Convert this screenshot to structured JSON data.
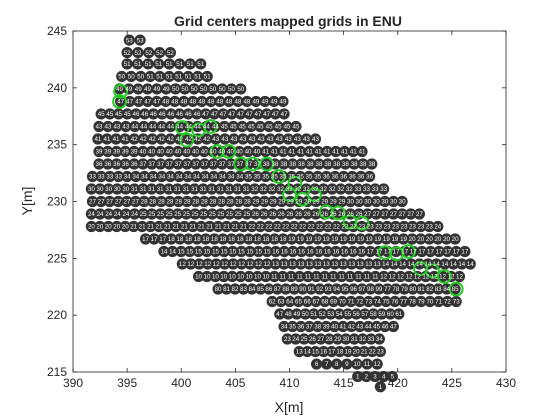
{
  "chart_data": {
    "type": "scatter",
    "title": "Grid centers mapped grids in ENU",
    "xlabel": "X[m]",
    "ylabel": "Y[m]",
    "xlim": [
      390,
      430
    ],
    "ylim": [
      215,
      245
    ],
    "xticks": [
      390,
      395,
      400,
      405,
      410,
      415,
      420,
      425,
      430
    ],
    "yticks": [
      215,
      220,
      225,
      230,
      235,
      240,
      245
    ],
    "grid": false,
    "box": true,
    "colors": {
      "marker": "#333333",
      "marker_label": "#ffffff",
      "highlight": "#22cc22",
      "axis": "#262626"
    },
    "point_labels": [
      {
        "y": 244.2,
        "x0": 395.2,
        "x1": 396.2,
        "labels": [
          "53",
          "53"
        ]
      },
      {
        "y": 243.1,
        "x0": 395.0,
        "x1": 399.0,
        "labels": [
          "52",
          "52",
          "52",
          "52",
          "52"
        ]
      },
      {
        "y": 242.1,
        "x0": 395.0,
        "x1": 401.8,
        "labels": [
          "51",
          "51",
          "51",
          "51",
          "51",
          "51",
          "51",
          "51"
        ]
      },
      {
        "y": 241.0,
        "x0": 394.5,
        "x1": 402.4,
        "labels": [
          "50",
          "50",
          "50",
          "51",
          "51",
          "51",
          "51",
          "51",
          "51",
          "51"
        ]
      },
      {
        "y": 239.9,
        "x0": 394.3,
        "x1": 405.5,
        "labels": [
          "49",
          "49",
          "49",
          "49",
          "49",
          "49",
          "50",
          "50",
          "50",
          "50",
          "50",
          "50",
          "50",
          "50"
        ]
      },
      {
        "y": 238.8,
        "x0": 394.4,
        "x1": 409.4,
        "labels": [
          "47",
          "47",
          "47",
          "47",
          "47",
          "48",
          "48",
          "48",
          "48",
          "48",
          "48",
          "48",
          "48",
          "48",
          "48",
          "49",
          "49",
          "49",
          "49"
        ]
      },
      {
        "y": 237.7,
        "x0": 392.6,
        "x1": 409.5,
        "labels": [
          "45",
          "45",
          "45",
          "45",
          "46",
          "46",
          "46",
          "46",
          "46",
          "46",
          "46",
          "46",
          "47",
          "47",
          "47",
          "47",
          "47",
          "47",
          "47",
          "47",
          "47",
          "47"
        ]
      },
      {
        "y": 236.6,
        "x0": 392.4,
        "x1": 410.6,
        "labels": [
          "43",
          "43",
          "43",
          "43",
          "44",
          "44",
          "44",
          "44",
          "44",
          "44",
          "44",
          "44",
          "44",
          "44",
          "45",
          "45",
          "45",
          "45",
          "45",
          "45",
          "45",
          "45",
          "45"
        ]
      },
      {
        "y": 235.5,
        "x0": 392.3,
        "x1": 412.4,
        "labels": [
          "41",
          "41",
          "41",
          "41",
          "42",
          "42",
          "42",
          "42",
          "42",
          "42",
          "42",
          "42",
          "42",
          "43",
          "43",
          "43",
          "43",
          "43",
          "43",
          "43",
          "43",
          "43",
          "43",
          "43",
          "43"
        ]
      },
      {
        "y": 234.4,
        "x0": 392.4,
        "x1": 416.7,
        "labels": [
          "39",
          "39",
          "39",
          "39",
          "39",
          "40",
          "40",
          "40",
          "40",
          "40",
          "40",
          "40",
          "40",
          "40",
          "40",
          "40",
          "40",
          "40",
          "40",
          "41",
          "41",
          "41",
          "41",
          "41",
          "41",
          "41",
          "41",
          "41",
          "41",
          "41",
          "41"
        ]
      },
      {
        "y": 233.3,
        "x0": 392.4,
        "x1": 417.6,
        "labels": [
          "36",
          "36",
          "36",
          "36",
          "36",
          "37",
          "37",
          "37",
          "37",
          "37",
          "37",
          "37",
          "37",
          "37",
          "37",
          "37",
          "37",
          "37",
          "37",
          "38",
          "38",
          "38",
          "38",
          "38",
          "38",
          "38",
          "38",
          "38",
          "38",
          "38",
          "38",
          "38"
        ]
      },
      {
        "y": 232.2,
        "x0": 391.8,
        "x1": 417.4,
        "labels": [
          "33",
          "33",
          "33",
          "33",
          "34",
          "34",
          "34",
          "34",
          "34",
          "34",
          "34",
          "34",
          "34",
          "34",
          "34",
          "34",
          "34",
          "34",
          "35",
          "35",
          "35",
          "35",
          "35",
          "35",
          "35",
          "35",
          "35",
          "36",
          "36",
          "36",
          "36",
          "36",
          "36"
        ]
      },
      {
        "y": 231.1,
        "x0": 391.7,
        "x1": 418.7,
        "labels": [
          "30",
          "30",
          "30",
          "30",
          "30",
          "31",
          "31",
          "31",
          "31",
          "31",
          "31",
          "31",
          "31",
          "31",
          "31",
          "31",
          "31",
          "31",
          "31",
          "32",
          "32",
          "32",
          "32",
          "32",
          "32",
          "32",
          "32",
          "32",
          "32",
          "32",
          "32",
          "33",
          "33",
          "33",
          "33"
        ]
      },
      {
        "y": 230.0,
        "x0": 391.8,
        "x1": 420.4,
        "labels": [
          "27",
          "27",
          "27",
          "27",
          "27",
          "27",
          "28",
          "28",
          "28",
          "28",
          "28",
          "28",
          "28",
          "28",
          "28",
          "28",
          "28",
          "28",
          "28",
          "29",
          "29",
          "29",
          "29",
          "29",
          "29",
          "29",
          "29",
          "29",
          "29",
          "29",
          "30",
          "30",
          "30",
          "30",
          "30",
          "30",
          "30"
        ]
      },
      {
        "y": 228.9,
        "x0": 391.7,
        "x1": 422.0,
        "labels": [
          "24",
          "24",
          "24",
          "24",
          "24",
          "24",
          "25",
          "25",
          "25",
          "25",
          "25",
          "25",
          "25",
          "25",
          "25",
          "25",
          "25",
          "25",
          "25",
          "26",
          "26",
          "26",
          "26",
          "26",
          "26",
          "26",
          "26",
          "26",
          "26",
          "26",
          "26",
          "26",
          "27",
          "27",
          "27",
          "27",
          "27",
          "27",
          "27"
        ]
      },
      {
        "y": 227.8,
        "x0": 391.7,
        "x1": 423.7,
        "labels": [
          "20",
          "20",
          "20",
          "20",
          "20",
          "21",
          "21",
          "21",
          "21",
          "21",
          "21",
          "21",
          "21",
          "21",
          "21",
          "21",
          "21",
          "21",
          "21",
          "22",
          "22",
          "22",
          "22",
          "22",
          "22",
          "22",
          "22",
          "22",
          "22",
          "22",
          "22",
          "22",
          "23",
          "23",
          "23",
          "23",
          "23",
          "23",
          "23",
          "23",
          "23",
          "24"
        ]
      },
      {
        "y": 226.7,
        "x0": 396.7,
        "x1": 425.3,
        "labels": [
          "17",
          "17",
          "17",
          "18",
          "18",
          "18",
          "18",
          "18",
          "18",
          "18",
          "18",
          "18",
          "18",
          "18",
          "18",
          "18",
          "18",
          "19",
          "19",
          "19",
          "19",
          "19",
          "19",
          "19",
          "19",
          "19",
          "19",
          "19",
          "19",
          "19",
          "19",
          "20",
          "20",
          "20",
          "20",
          "20",
          "20"
        ]
      },
      {
        "y": 225.6,
        "x0": 398.4,
        "x1": 426.2,
        "labels": [
          "14",
          "14",
          "15",
          "15",
          "15",
          "15",
          "15",
          "15",
          "15",
          "15",
          "15",
          "15",
          "15",
          "16",
          "16",
          "16",
          "16",
          "16",
          "16",
          "16",
          "16",
          "16",
          "16",
          "16",
          "17",
          "17",
          "17",
          "17",
          "17",
          "17",
          "17",
          "17",
          "17",
          "17",
          "17",
          "17"
        ]
      },
      {
        "y": 224.5,
        "x0": 400.1,
        "x1": 426.7,
        "labels": [
          "12",
          "12",
          "12",
          "12",
          "12",
          "12",
          "12",
          "12",
          "12",
          "12",
          "12",
          "13",
          "13",
          "13",
          "13",
          "13",
          "13",
          "13",
          "13",
          "13",
          "13",
          "13",
          "13",
          "13",
          "14",
          "14",
          "14",
          "14",
          "14",
          "14",
          "14",
          "14",
          "14",
          "14",
          "14"
        ]
      },
      {
        "y": 223.4,
        "x0": 401.6,
        "x1": 425.7,
        "labels": [
          "10",
          "10",
          "10",
          "10",
          "10",
          "10",
          "10",
          "10",
          "10",
          "11",
          "11",
          "11",
          "11",
          "11",
          "11",
          "11",
          "11",
          "11",
          "11",
          "11",
          "11",
          "11",
          "12",
          "12",
          "12",
          "12",
          "12",
          "12",
          "12",
          "12",
          "12",
          "12"
        ]
      },
      {
        "y": 222.3,
        "x0": 403.4,
        "x1": 425.3,
        "labels": [
          "80",
          "81",
          "82",
          "83",
          "84",
          "85",
          "86",
          "87",
          "88",
          "89",
          "90",
          "91",
          "92",
          "93",
          "94",
          "95",
          "96",
          "97",
          "98",
          "99",
          "77",
          "78",
          "79",
          "80",
          "81",
          "82",
          "83",
          "84",
          "85"
        ]
      },
      {
        "y": 221.2,
        "x0": 408.4,
        "x1": 425.4,
        "labels": [
          "62",
          "63",
          "64",
          "65",
          "66",
          "67",
          "68",
          "69",
          "70",
          "71",
          "72",
          "73",
          "74",
          "75",
          "76",
          "77",
          "78",
          "79",
          "70",
          "71",
          "72",
          "73"
        ]
      },
      {
        "y": 220.1,
        "x0": 409.1,
        "x1": 420.1,
        "labels": [
          "47",
          "48",
          "49",
          "50",
          "51",
          "52",
          "53",
          "54",
          "55",
          "56",
          "57",
          "58",
          "59",
          "60",
          "61"
        ]
      },
      {
        "y": 219.0,
        "x0": 409.5,
        "x1": 419.6,
        "labels": [
          "34",
          "35",
          "36",
          "37",
          "38",
          "39",
          "40",
          "41",
          "42",
          "43",
          "44",
          "45",
          "46",
          "47"
        ]
      },
      {
        "y": 217.9,
        "x0": 409.8,
        "x1": 418.3,
        "labels": [
          "23",
          "24",
          "25",
          "26",
          "27",
          "28",
          "29",
          "30",
          "31",
          "32",
          "33",
          "34"
        ]
      },
      {
        "y": 216.8,
        "x0": 410.9,
        "x1": 418.4,
        "labels": [
          "13",
          "14",
          "15",
          "16",
          "17",
          "18",
          "19",
          "20",
          "21",
          "22",
          "23"
        ]
      },
      {
        "y": 215.7,
        "x0": 412.5,
        "x1": 418.1,
        "labels": [
          "6",
          "7",
          "8",
          "9",
          "10",
          "11",
          "12"
        ]
      },
      {
        "y": 214.6,
        "x0": 416.3,
        "x1": 419.5,
        "labels": [
          "1",
          "2",
          "3",
          "4",
          "5"
        ]
      },
      {
        "y": 213.7,
        "x0": 418.4,
        "x1": 418.4,
        "labels": [
          "1"
        ]
      }
    ],
    "highlight_points": [
      {
        "x": 394.4,
        "y": 239.7
      },
      {
        "x": 394.3,
        "y": 238.8
      },
      {
        "x": 400.1,
        "y": 236.5
      },
      {
        "x": 400.5,
        "y": 235.4
      },
      {
        "x": 401.6,
        "y": 236.3
      },
      {
        "x": 402.7,
        "y": 236.6
      },
      {
        "x": 403.3,
        "y": 234.4
      },
      {
        "x": 404.4,
        "y": 234.4
      },
      {
        "x": 405.5,
        "y": 233.3
      },
      {
        "x": 406.6,
        "y": 233.3
      },
      {
        "x": 407.9,
        "y": 233.3
      },
      {
        "x": 409.0,
        "y": 232.2
      },
      {
        "x": 410.5,
        "y": 231.6
      },
      {
        "x": 410.0,
        "y": 230.6
      },
      {
        "x": 411.2,
        "y": 230.2
      },
      {
        "x": 412.3,
        "y": 230.6
      },
      {
        "x": 413.4,
        "y": 229.1
      },
      {
        "x": 414.5,
        "y": 229.0
      },
      {
        "x": 415.6,
        "y": 228.2
      },
      {
        "x": 416.7,
        "y": 228.1
      },
      {
        "x": 418.8,
        "y": 225.5
      },
      {
        "x": 419.9,
        "y": 225.4
      },
      {
        "x": 421.0,
        "y": 225.6
      },
      {
        "x": 422.1,
        "y": 224.1
      },
      {
        "x": 423.2,
        "y": 223.9
      },
      {
        "x": 424.3,
        "y": 223.4
      },
      {
        "x": 425.4,
        "y": 222.3
      }
    ]
  }
}
